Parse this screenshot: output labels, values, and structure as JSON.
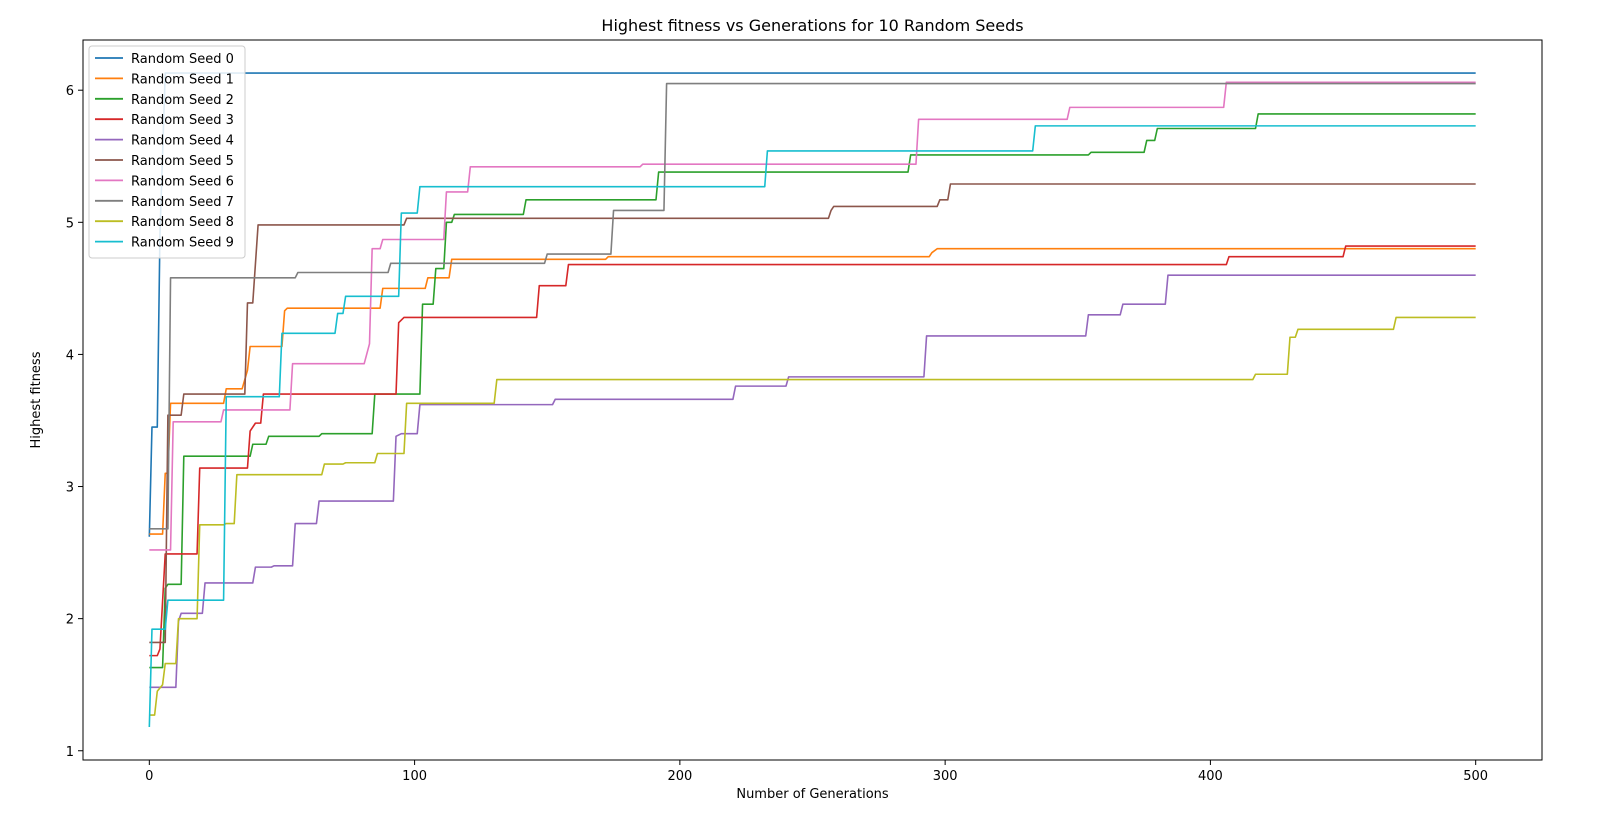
{
  "chart_data": {
    "type": "line",
    "title": "Highest fitness vs Generations for 10 Random Seeds",
    "xlabel": "Number of Generations",
    "ylabel": "Highest fitness",
    "xlim": [
      -25,
      525
    ],
    "ylim": [
      0.93,
      6.38
    ],
    "xticks": [
      0,
      100,
      200,
      300,
      400,
      500
    ],
    "yticks": [
      1,
      2,
      3,
      4,
      5,
      6
    ],
    "grid": false,
    "legend_position": "top-left",
    "series": [
      {
        "name": "Random Seed 0",
        "color": "#1f77b4",
        "points": [
          [
            0,
            2.62
          ],
          [
            1,
            3.45
          ],
          [
            3,
            3.45
          ],
          [
            4,
            4.9
          ],
          [
            6,
            6.13
          ],
          [
            500,
            6.13
          ]
        ]
      },
      {
        "name": "Random Seed 1",
        "color": "#ff7f0e",
        "points": [
          [
            0,
            2.64
          ],
          [
            5,
            2.64
          ],
          [
            6,
            3.1
          ],
          [
            7,
            3.1
          ],
          [
            8,
            3.63
          ],
          [
            28,
            3.63
          ],
          [
            29,
            3.74
          ],
          [
            35,
            3.74
          ],
          [
            37,
            3.88
          ],
          [
            38,
            4.06
          ],
          [
            50,
            4.06
          ],
          [
            51,
            4.33
          ],
          [
            52,
            4.35
          ],
          [
            87,
            4.35
          ],
          [
            88,
            4.5
          ],
          [
            104,
            4.5
          ],
          [
            105,
            4.58
          ],
          [
            113,
            4.58
          ],
          [
            114,
            4.72
          ],
          [
            172,
            4.72
          ],
          [
            173,
            4.74
          ],
          [
            294,
            4.74
          ],
          [
            295,
            4.77
          ],
          [
            297,
            4.8
          ],
          [
            500,
            4.8
          ]
        ]
      },
      {
        "name": "Random Seed 2",
        "color": "#2ca02c",
        "points": [
          [
            0,
            1.63
          ],
          [
            5,
            1.63
          ],
          [
            6,
            2.23
          ],
          [
            7,
            2.26
          ],
          [
            12,
            2.26
          ],
          [
            13,
            3.23
          ],
          [
            38,
            3.23
          ],
          [
            39,
            3.32
          ],
          [
            44,
            3.32
          ],
          [
            45,
            3.38
          ],
          [
            64,
            3.38
          ],
          [
            65,
            3.4
          ],
          [
            84,
            3.4
          ],
          [
            85,
            3.7
          ],
          [
            102,
            3.7
          ],
          [
            103,
            4.38
          ],
          [
            107,
            4.38
          ],
          [
            108,
            4.65
          ],
          [
            111,
            4.65
          ],
          [
            112,
            5.0
          ],
          [
            114,
            5.0
          ],
          [
            115,
            5.06
          ],
          [
            141,
            5.06
          ],
          [
            142,
            5.17
          ],
          [
            191,
            5.17
          ],
          [
            192,
            5.38
          ],
          [
            286,
            5.38
          ],
          [
            287,
            5.51
          ],
          [
            354,
            5.51
          ],
          [
            355,
            5.53
          ],
          [
            375,
            5.53
          ],
          [
            376,
            5.62
          ],
          [
            379,
            5.62
          ],
          [
            380,
            5.71
          ],
          [
            417,
            5.71
          ],
          [
            418,
            5.82
          ],
          [
            500,
            5.82
          ]
        ]
      },
      {
        "name": "Random Seed 3",
        "color": "#d62728",
        "points": [
          [
            0,
            1.72
          ],
          [
            3,
            1.72
          ],
          [
            4,
            1.77
          ],
          [
            6,
            2.49
          ],
          [
            18,
            2.49
          ],
          [
            19,
            3.14
          ],
          [
            37,
            3.14
          ],
          [
            38,
            3.42
          ],
          [
            40,
            3.48
          ],
          [
            42,
            3.48
          ],
          [
            43,
            3.7
          ],
          [
            93,
            3.7
          ],
          [
            94,
            4.24
          ],
          [
            96,
            4.28
          ],
          [
            146,
            4.28
          ],
          [
            147,
            4.52
          ],
          [
            157,
            4.52
          ],
          [
            158,
            4.68
          ],
          [
            406,
            4.68
          ],
          [
            407,
            4.74
          ],
          [
            450,
            4.74
          ],
          [
            451,
            4.82
          ],
          [
            500,
            4.82
          ]
        ]
      },
      {
        "name": "Random Seed 4",
        "color": "#9467bd",
        "points": [
          [
            0,
            1.48
          ],
          [
            10,
            1.48
          ],
          [
            11,
            1.98
          ],
          [
            12,
            2.04
          ],
          [
            20,
            2.04
          ],
          [
            21,
            2.27
          ],
          [
            39,
            2.27
          ],
          [
            40,
            2.39
          ],
          [
            46,
            2.39
          ],
          [
            47,
            2.4
          ],
          [
            54,
            2.4
          ],
          [
            55,
            2.72
          ],
          [
            63,
            2.72
          ],
          [
            64,
            2.89
          ],
          [
            92,
            2.89
          ],
          [
            93,
            3.38
          ],
          [
            95,
            3.4
          ],
          [
            101,
            3.4
          ],
          [
            102,
            3.62
          ],
          [
            152,
            3.62
          ],
          [
            153,
            3.66
          ],
          [
            220,
            3.66
          ],
          [
            221,
            3.76
          ],
          [
            240,
            3.76
          ],
          [
            241,
            3.83
          ],
          [
            292,
            3.83
          ],
          [
            293,
            4.14
          ],
          [
            353,
            4.14
          ],
          [
            354,
            4.3
          ],
          [
            366,
            4.3
          ],
          [
            367,
            4.38
          ],
          [
            383,
            4.38
          ],
          [
            384,
            4.6
          ],
          [
            500,
            4.6
          ]
        ]
      },
      {
        "name": "Random Seed 5",
        "color": "#8c564b",
        "points": [
          [
            0,
            1.82
          ],
          [
            6,
            1.82
          ],
          [
            7,
            3.54
          ],
          [
            12,
            3.54
          ],
          [
            13,
            3.7
          ],
          [
            36,
            3.7
          ],
          [
            37,
            4.39
          ],
          [
            39,
            4.39
          ],
          [
            41,
            4.98
          ],
          [
            96,
            4.98
          ],
          [
            97,
            5.03
          ],
          [
            256,
            5.03
          ],
          [
            257,
            5.09
          ],
          [
            258,
            5.12
          ],
          [
            297,
            5.12
          ],
          [
            298,
            5.17
          ],
          [
            301,
            5.17
          ],
          [
            302,
            5.29
          ],
          [
            500,
            5.29
          ]
        ]
      },
      {
        "name": "Random Seed 6",
        "color": "#e377c2",
        "points": [
          [
            0,
            2.52
          ],
          [
            8,
            2.52
          ],
          [
            9,
            3.49
          ],
          [
            27,
            3.49
          ],
          [
            28,
            3.58
          ],
          [
            53,
            3.58
          ],
          [
            54,
            3.93
          ],
          [
            81,
            3.93
          ],
          [
            83,
            4.08
          ],
          [
            84,
            4.8
          ],
          [
            87,
            4.8
          ],
          [
            88,
            4.87
          ],
          [
            111,
            4.87
          ],
          [
            112,
            5.23
          ],
          [
            120,
            5.23
          ],
          [
            121,
            5.42
          ],
          [
            185,
            5.42
          ],
          [
            186,
            5.44
          ],
          [
            289,
            5.44
          ],
          [
            290,
            5.78
          ],
          [
            346,
            5.78
          ],
          [
            347,
            5.87
          ],
          [
            405,
            5.87
          ],
          [
            406,
            6.06
          ],
          [
            500,
            6.06
          ]
        ]
      },
      {
        "name": "Random Seed 7",
        "color": "#7f7f7f",
        "points": [
          [
            0,
            2.68
          ],
          [
            7,
            2.68
          ],
          [
            8,
            4.58
          ],
          [
            55,
            4.58
          ],
          [
            56,
            4.62
          ],
          [
            90,
            4.62
          ],
          [
            91,
            4.69
          ],
          [
            149,
            4.69
          ],
          [
            150,
            4.76
          ],
          [
            174,
            4.76
          ],
          [
            175,
            5.09
          ],
          [
            194,
            5.09
          ],
          [
            195,
            6.05
          ],
          [
            500,
            6.05
          ]
        ]
      },
      {
        "name": "Random Seed 8",
        "color": "#bcbd22",
        "points": [
          [
            0,
            1.27
          ],
          [
            2,
            1.27
          ],
          [
            3,
            1.45
          ],
          [
            5,
            1.5
          ],
          [
            6,
            1.66
          ],
          [
            10,
            1.66
          ],
          [
            11,
            2.0
          ],
          [
            18,
            2.0
          ],
          [
            19,
            2.71
          ],
          [
            28,
            2.71
          ],
          [
            29,
            2.72
          ],
          [
            32,
            2.72
          ],
          [
            33,
            3.09
          ],
          [
            65,
            3.09
          ],
          [
            66,
            3.17
          ],
          [
            73,
            3.17
          ],
          [
            74,
            3.18
          ],
          [
            85,
            3.18
          ],
          [
            86,
            3.25
          ],
          [
            96,
            3.25
          ],
          [
            97,
            3.63
          ],
          [
            130,
            3.63
          ],
          [
            131,
            3.81
          ],
          [
            416,
            3.81
          ],
          [
            417,
            3.85
          ],
          [
            429,
            3.85
          ],
          [
            430,
            4.13
          ],
          [
            432,
            4.13
          ],
          [
            433,
            4.19
          ],
          [
            469,
            4.19
          ],
          [
            470,
            4.28
          ],
          [
            500,
            4.28
          ]
        ]
      },
      {
        "name": "Random Seed 9",
        "color": "#17becf",
        "points": [
          [
            0,
            1.18
          ],
          [
            1,
            1.92
          ],
          [
            6,
            1.92
          ],
          [
            7,
            2.14
          ],
          [
            28,
            2.14
          ],
          [
            29,
            3.68
          ],
          [
            49,
            3.68
          ],
          [
            50,
            4.16
          ],
          [
            70,
            4.16
          ],
          [
            71,
            4.31
          ],
          [
            73,
            4.31
          ],
          [
            74,
            4.44
          ],
          [
            94,
            4.44
          ],
          [
            95,
            5.07
          ],
          [
            101,
            5.07
          ],
          [
            102,
            5.27
          ],
          [
            232,
            5.27
          ],
          [
            233,
            5.54
          ],
          [
            333,
            5.54
          ],
          [
            334,
            5.73
          ],
          [
            500,
            5.73
          ]
        ]
      }
    ]
  }
}
